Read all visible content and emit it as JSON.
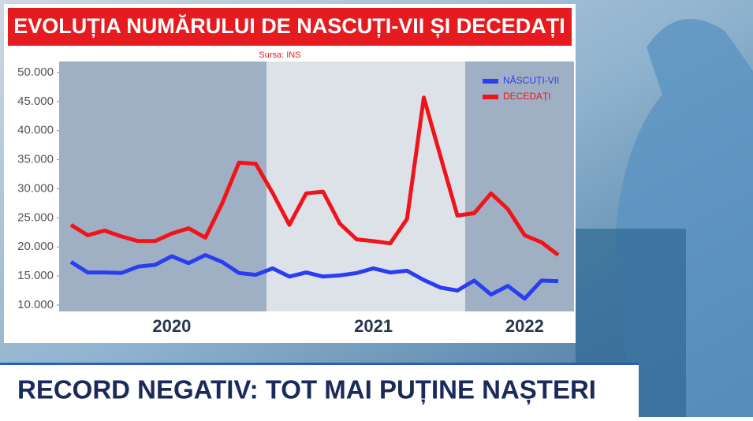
{
  "chart_data": {
    "type": "line",
    "title": "EVOLUȚIA NUMĂRULUI DE NASCUȚI-VII ȘI DECEDAȚI",
    "subtitle": "Sursa: INS",
    "categories": [
      null,
      null,
      null,
      null,
      null,
      null,
      "2020",
      null,
      null,
      null,
      null,
      null,
      null,
      null,
      null,
      null,
      null,
      null,
      "2021",
      null,
      null,
      null,
      null,
      null,
      null,
      null,
      null,
      "2022",
      null,
      null
    ],
    "series": [
      {
        "name": "NĂSCUȚI-VII",
        "color": "#2b3df0",
        "values": [
          17400,
          15600,
          15600,
          15500,
          16600,
          16900,
          18400,
          17200,
          18600,
          17400,
          15500,
          15200,
          16300,
          14900,
          15600,
          14900,
          15100,
          15500,
          16300,
          15600,
          15900,
          14300,
          13000,
          12500,
          14200,
          11800,
          13300,
          11100,
          14200,
          14100
        ]
      },
      {
        "name": "DECEDAȚI",
        "color": "#f0141a",
        "values": [
          23800,
          22000,
          22800,
          21800,
          21000,
          21000,
          22300,
          23200,
          21600,
          27500,
          34500,
          34300,
          29300,
          23800,
          29200,
          29500,
          24000,
          21300,
          21000,
          20600,
          24800,
          45700,
          35500,
          25400,
          25800,
          29200,
          26500,
          22000,
          20800,
          18600
        ]
      }
    ],
    "ylim": [
      8900,
      51900
    ],
    "yticks": [
      {
        "value": 10000,
        "label": "10.000"
      },
      {
        "value": 15000,
        "label": "15.000"
      },
      {
        "value": 20000,
        "label": "20.000"
      },
      {
        "value": 25000,
        "label": "25.000"
      },
      {
        "value": 30000,
        "label": "30.000"
      },
      {
        "value": 35000,
        "label": "35.000"
      },
      {
        "value": 40000,
        "label": "40.000"
      },
      {
        "value": 45000,
        "label": "45.000"
      },
      {
        "value": 50000,
        "label": "50.000"
      }
    ],
    "legend": "upper right"
  },
  "banner": {
    "text": "RECORD NEGATIV: TOT MAI PUȚINE NAȘTERI"
  }
}
